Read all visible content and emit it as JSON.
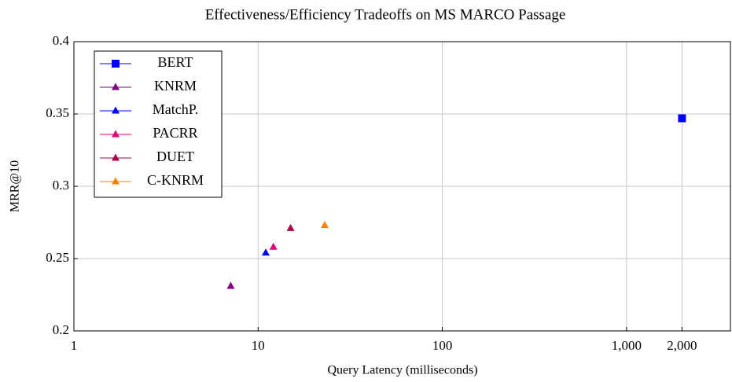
{
  "chart_data": {
    "type": "scatter",
    "title": "Effectiveness/Efficiency Tradeoffs on MS MARCO Passage",
    "xlabel": "Query Latency (milliseconds)",
    "ylabel": "MRR@10",
    "xscale": "log",
    "xlim": [
      1,
      3700
    ],
    "ylim": [
      0.2,
      0.4
    ],
    "xticks": [
      1,
      10,
      100,
      {
        "value": 1000,
        "label": "1,000"
      },
      {
        "value": 2000,
        "label": "2,000"
      }
    ],
    "yticks": [
      0.2,
      0.25,
      0.3,
      0.35,
      0.4
    ],
    "grid": true,
    "legend": "upper left",
    "series": [
      {
        "name": "BERT",
        "color": "#0000ff",
        "marker": "square",
        "x": [
          2000
        ],
        "values": [
          0.347
        ]
      },
      {
        "name": "KNRM",
        "color": "#800080",
        "marker": "triangle",
        "x": [
          7.1
        ],
        "values": [
          0.231
        ]
      },
      {
        "name": "MatchP.",
        "color": "#0000ff",
        "marker": "triangle",
        "x": [
          11
        ],
        "values": [
          0.254
        ]
      },
      {
        "name": "PACRR",
        "color": "#e6007e",
        "marker": "triangle",
        "x": [
          12.1
        ],
        "values": [
          0.258
        ]
      },
      {
        "name": "DUET",
        "color": "#b0004a",
        "marker": "triangle",
        "x": [
          15
        ],
        "values": [
          0.271
        ]
      },
      {
        "name": "C-KNRM",
        "color": "#ff8000",
        "marker": "triangle",
        "x": [
          23
        ],
        "values": [
          0.273
        ]
      }
    ]
  }
}
